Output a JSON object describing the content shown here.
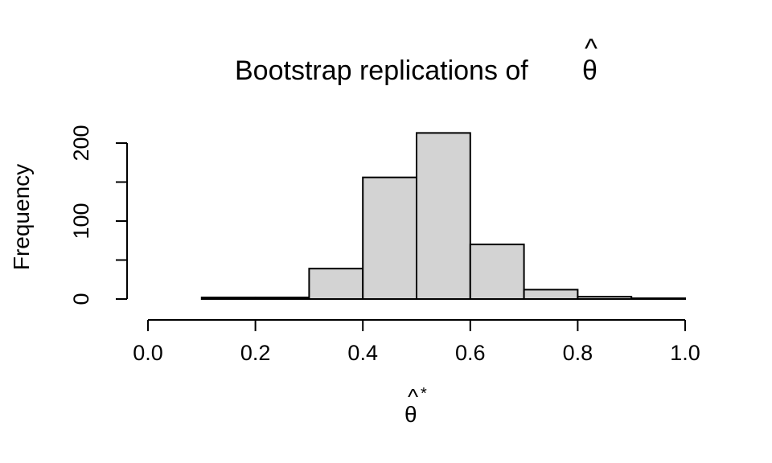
{
  "chart_data": {
    "type": "histogram",
    "title": {
      "text": "Bootstrap replications of",
      "symbol": "θ",
      "accent": "^"
    },
    "xlabel": {
      "symbol": "θ",
      "accent": "^",
      "superscript": "*"
    },
    "ylabel": "Frequency",
    "xlim": [
      0.0,
      1.0
    ],
    "ylim": [
      0,
      230
    ],
    "bin_edges": [
      0.0,
      0.1,
      0.2,
      0.3,
      0.4,
      0.5,
      0.6,
      0.7,
      0.8,
      0.9,
      1.0
    ],
    "counts": [
      0,
      2,
      2,
      39,
      156,
      213,
      70,
      12,
      3,
      1
    ],
    "x_ticks": [
      0.0,
      0.2,
      0.4,
      0.6,
      0.8,
      1.0
    ],
    "x_tick_labels": [
      "0.0",
      "0.2",
      "0.4",
      "0.6",
      "0.8",
      "1.0"
    ],
    "y_ticks": [
      0,
      50,
      100,
      150,
      200
    ],
    "y_tick_labels": [
      "0",
      "100",
      "200"
    ],
    "y_labeled_ticks": [
      0,
      100,
      200
    ],
    "bar_color": "#d3d3d3",
    "grid": false
  }
}
